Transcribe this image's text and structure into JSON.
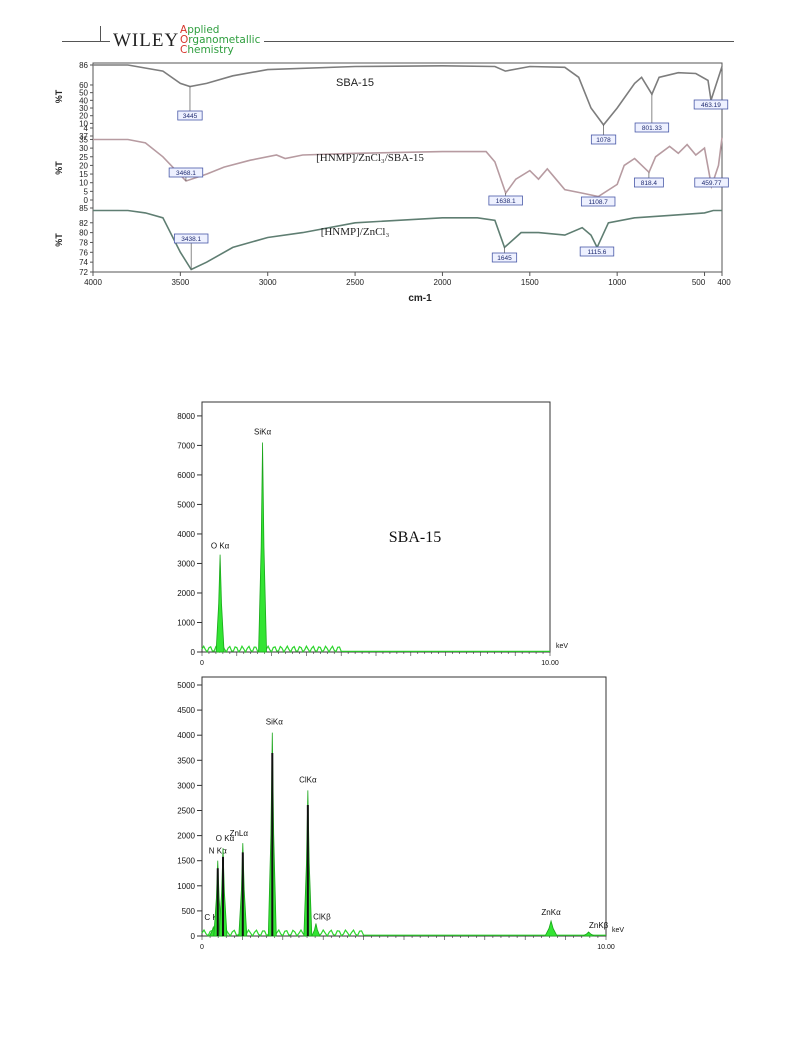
{
  "header": {
    "publisher": "WILEY",
    "journal_initials": [
      "A",
      "O",
      "C"
    ],
    "journal_rest": [
      "pplied",
      "rganometallic",
      "hemistry"
    ]
  },
  "chart_data": [
    {
      "type": "line",
      "xlabel": "cm-1",
      "x_ticks": [
        "4000",
        "3500",
        "3000",
        "2500",
        "2000",
        "1500",
        "1000",
        "500",
        "400"
      ],
      "xlim": [
        4000,
        400
      ],
      "series": [
        {
          "name": "SBA-15",
          "ylabel": "%T",
          "y_ticks": [
            "86",
            "60",
            "50",
            "40",
            "30",
            "20",
            "10",
            "4"
          ],
          "peaks": [
            "3445",
            "1078",
            "801.33",
            "463.19"
          ],
          "x": [
            4000,
            3800,
            3600,
            3500,
            3445,
            3350,
            3200,
            3000,
            2500,
            2000,
            1700,
            1640,
            1500,
            1300,
            1220,
            1150,
            1078,
            1000,
            900,
            860,
            801,
            760,
            650,
            550,
            480,
            463,
            420,
            400
          ],
          "y": [
            86,
            86,
            78,
            62,
            58,
            62,
            72,
            80,
            84,
            85,
            84,
            78,
            84,
            83,
            70,
            30,
            8,
            30,
            62,
            70,
            48,
            70,
            76,
            75,
            66,
            40,
            70,
            84
          ]
        },
        {
          "name": "[HNMP]/ZnCl₃/SBA-15",
          "ylabel": "%T",
          "y_ticks": [
            "37",
            "35",
            "30",
            "25",
            "20",
            "15",
            "10",
            "5",
            "0"
          ],
          "peaks": [
            "3468.1",
            "1638.1",
            "1108.7",
            "818.4",
            "459.77"
          ],
          "x": [
            4000,
            3800,
            3700,
            3600,
            3468,
            3350,
            3250,
            3100,
            2950,
            2900,
            2800,
            2500,
            2000,
            1750,
            1700,
            1638,
            1580,
            1500,
            1450,
            1400,
            1350,
            1300,
            1200,
            1108,
            1000,
            960,
            900,
            818,
            780,
            700,
            650,
            600,
            550,
            500,
            460,
            420,
            400
          ],
          "y": [
            35,
            35,
            33,
            25,
            11,
            15,
            19,
            23,
            26,
            24,
            26,
            27,
            28,
            28,
            22,
            4,
            12,
            17,
            12,
            18,
            12,
            6,
            4,
            2,
            9,
            20,
            24,
            16,
            25,
            31,
            27,
            32,
            26,
            30,
            8,
            20,
            36
          ]
        },
        {
          "name": "[HNMP]/ZnCl₃",
          "ylabel": "%T",
          "y_ticks": [
            "85",
            "82",
            "80",
            "78",
            "76",
            "74",
            "72"
          ],
          "peaks": [
            "3438.1",
            "1645",
            "1115.6"
          ],
          "x": [
            4000,
            3800,
            3700,
            3600,
            3500,
            3438,
            3350,
            3200,
            3000,
            2800,
            2500,
            2000,
            1800,
            1700,
            1645,
            1550,
            1450,
            1300,
            1200,
            1150,
            1115,
            1050,
            900,
            700,
            500,
            450,
            400
          ],
          "y": [
            84.5,
            84.5,
            84,
            83,
            76,
            72.5,
            74,
            77,
            79,
            80,
            82,
            83,
            83,
            82.5,
            77,
            80,
            80,
            79.5,
            81,
            79.5,
            77,
            82,
            83,
            83.5,
            84,
            84.5,
            84.5
          ]
        }
      ]
    },
    {
      "type": "bar",
      "title": "SBA-15",
      "xlabel": "keV",
      "x_ticks": [
        "0",
        "10.00"
      ],
      "y_ticks": [
        "0",
        "1000",
        "2000",
        "3000",
        "4000",
        "5000",
        "6000",
        "7000",
        "8000"
      ],
      "ylim": [
        0,
        8200
      ],
      "xlim": [
        0,
        10
      ],
      "peaks": [
        {
          "label": "O Kα",
          "kev": 0.52,
          "counts": 3300
        },
        {
          "label": "SiKα",
          "kev": 1.74,
          "counts": 7100
        }
      ]
    },
    {
      "type": "bar",
      "xlabel": "keV",
      "x_ticks": [
        "0",
        "10.00"
      ],
      "y_ticks": [
        "0",
        "500",
        "1000",
        "1500",
        "2000",
        "2500",
        "3000",
        "3500",
        "4000",
        "4500",
        "5000"
      ],
      "ylim": [
        0,
        5000
      ],
      "xlim": [
        0,
        10
      ],
      "peaks": [
        {
          "label": "C Kα",
          "kev": 0.28,
          "counts": 180
        },
        {
          "label": "N Kα",
          "kev": 0.39,
          "counts": 1500
        },
        {
          "label": "O Kα",
          "kev": 0.52,
          "counts": 1750
        },
        {
          "label": "ZnLα",
          "kev": 1.01,
          "counts": 1850
        },
        {
          "label": "SiKα",
          "kev": 1.74,
          "counts": 4050
        },
        {
          "label": "ClKα",
          "kev": 2.62,
          "counts": 2900
        },
        {
          "label": "ClKβ",
          "kev": 2.82,
          "counts": 250
        },
        {
          "label": "ZnKα",
          "kev": 8.64,
          "counts": 300
        },
        {
          "label": "ZnKβ",
          "kev": 9.57,
          "counts": 80
        }
      ]
    }
  ]
}
